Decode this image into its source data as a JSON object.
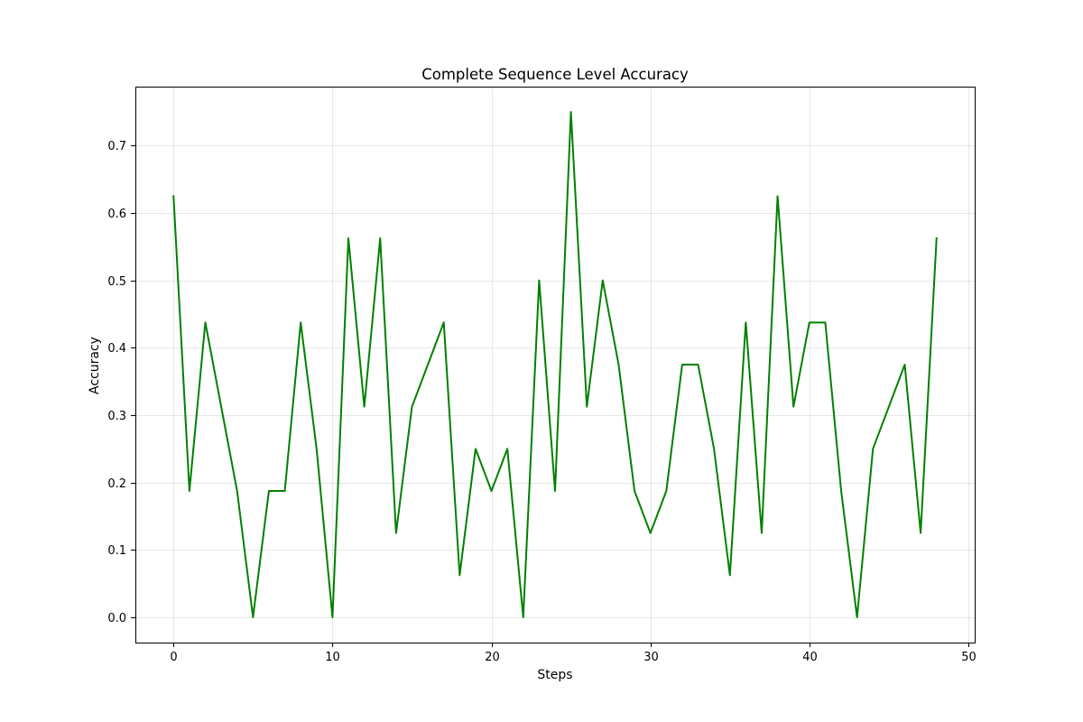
{
  "chart_data": {
    "type": "line",
    "title": "Complete Sequence Level Accuracy",
    "xlabel": "Steps",
    "ylabel": "Accuracy",
    "xlim": [
      -2.4,
      50.4
    ],
    "ylim": [
      -0.0375,
      0.7875
    ],
    "xticks": [
      0,
      10,
      20,
      30,
      40,
      50
    ],
    "yticks": [
      0.0,
      0.1,
      0.2,
      0.3,
      0.4,
      0.5,
      0.6,
      0.7
    ],
    "xtick_labels": [
      "0",
      "10",
      "20",
      "30",
      "40",
      "50"
    ],
    "ytick_labels": [
      "0.0",
      "0.1",
      "0.2",
      "0.3",
      "0.4",
      "0.5",
      "0.6",
      "0.7"
    ],
    "grid": true,
    "series": [
      {
        "color": "#008000",
        "x": [
          0,
          1,
          2,
          3,
          4,
          5,
          6,
          7,
          8,
          9,
          10,
          11,
          12,
          13,
          14,
          15,
          16,
          17,
          18,
          19,
          20,
          21,
          22,
          23,
          24,
          25,
          26,
          27,
          28,
          29,
          30,
          31,
          32,
          33,
          34,
          35,
          36,
          37,
          38,
          39,
          40,
          41,
          42,
          43,
          44,
          45,
          46,
          47,
          48
        ],
        "y": [
          0.625,
          0.1875,
          0.4375,
          0.3125,
          0.1875,
          0.0,
          0.1875,
          0.1875,
          0.4375,
          0.25,
          0.0,
          0.5625,
          0.3125,
          0.5625,
          0.125,
          0.3125,
          0.375,
          0.4375,
          0.0625,
          0.25,
          0.1875,
          0.25,
          0.0,
          0.5,
          0.1875,
          0.75,
          0.3125,
          0.5,
          0.375,
          0.1875,
          0.125,
          0.1875,
          0.375,
          0.375,
          0.25,
          0.0625,
          0.4375,
          0.125,
          0.625,
          0.3125,
          0.4375,
          0.4375,
          0.1875,
          0.0,
          0.25,
          0.3125,
          0.375,
          0.125,
          0.5625
        ]
      }
    ]
  }
}
